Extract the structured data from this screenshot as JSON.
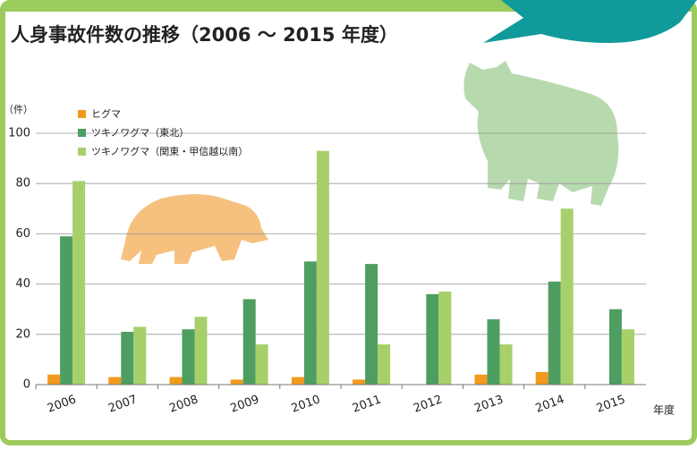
{
  "chart_data": {
    "type": "bar",
    "title": "人身事故件数の推移（2006 ～ 2015 年度）",
    "y_label": "（件）",
    "x_label": "年度",
    "categories": [
      "2006",
      "2007",
      "2008",
      "2009",
      "2010",
      "2011",
      "2012",
      "2013",
      "2014",
      "2015"
    ],
    "series": [
      {
        "name": "ヒグマ",
        "color": "#f39a1e",
        "values": [
          4,
          3,
          3,
          2,
          3,
          2,
          0,
          4,
          5,
          0
        ]
      },
      {
        "name": "ツキノワグマ（東北）",
        "color": "#4e9e62",
        "values": [
          59,
          21,
          22,
          34,
          49,
          48,
          36,
          26,
          41,
          30
        ]
      },
      {
        "name": "ツキノワグマ（関東・甲信越以南）",
        "color": "#a8d06a",
        "values": [
          81,
          23,
          27,
          16,
          93,
          16,
          37,
          16,
          70,
          22
        ]
      }
    ],
    "ylim": [
      0,
      100
    ],
    "yticks": [
      0,
      20,
      40,
      60,
      80,
      100
    ],
    "grid": true,
    "legend": "top-left"
  }
}
